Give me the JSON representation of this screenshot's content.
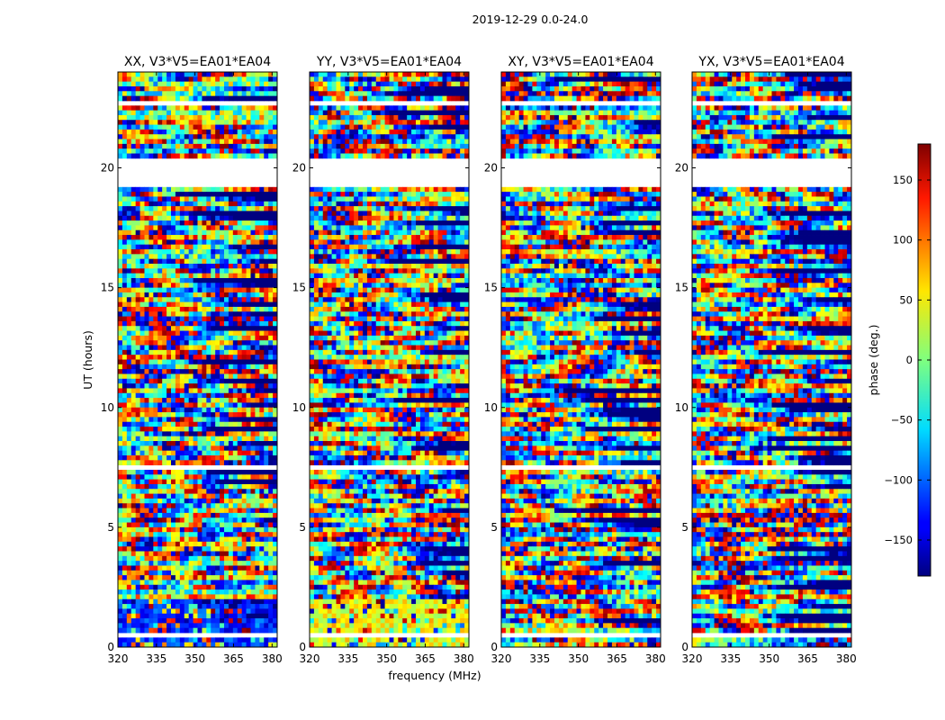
{
  "figure": {
    "suptitle": "2019-12-29 0.0-24.0"
  },
  "chart_data": {
    "type": "heatmap",
    "xlabel": "frequency (MHz)",
    "ylabel": "UT (hours)",
    "xlim": [
      320,
      382
    ],
    "ylim": [
      0,
      24
    ],
    "xticks": [
      320,
      335,
      350,
      365,
      380
    ],
    "yticks": [
      0,
      5,
      10,
      15,
      20
    ],
    "panels": [
      {
        "title": "XX, V3*V5=EA01*EA04",
        "bias": -120,
        "bias_band": [
          0,
          2
        ]
      },
      {
        "title": "YY, V3*V5=EA01*EA04",
        "bias": 40,
        "bias_band": [
          0,
          2
        ]
      },
      {
        "title": "XY, V3*V5=EA01*EA04",
        "bias": null,
        "bias_band": null
      },
      {
        "title": "YX, V3*V5=EA01*EA04",
        "bias": null,
        "bias_band": null
      }
    ],
    "flagged_ut_ranges": [
      [
        0.35,
        0.55
      ],
      [
        19.2,
        20.3
      ],
      [
        7.35,
        7.55
      ],
      [
        22.7,
        22.85
      ]
    ],
    "colorbar": {
      "label": "phase (deg.)",
      "range": [
        -180,
        180
      ],
      "ticks": [
        150,
        100,
        50,
        0,
        -50,
        -100,
        -150
      ],
      "tick_labels": [
        "150",
        "100",
        "50",
        "0",
        "−50",
        "−100",
        "−150"
      ]
    }
  }
}
